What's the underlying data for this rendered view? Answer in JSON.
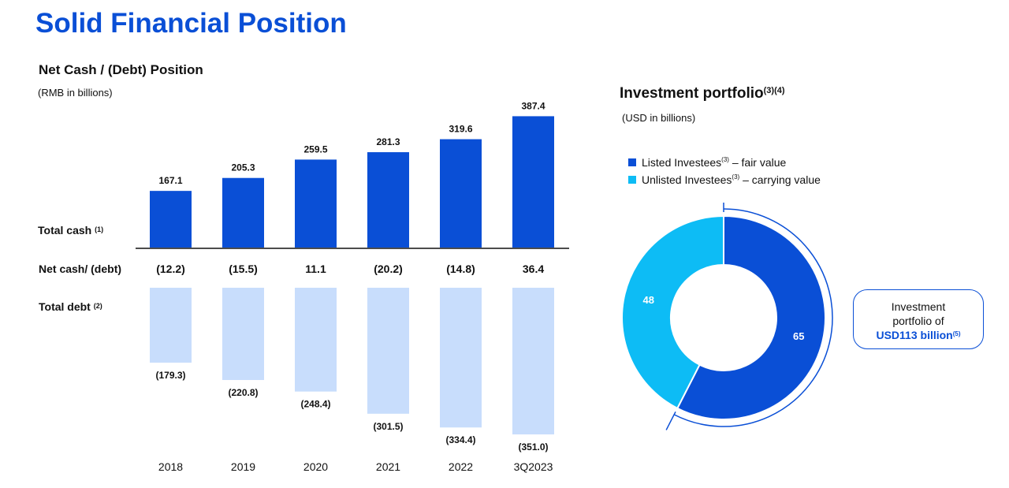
{
  "header": {
    "title": "Solid Financial Position"
  },
  "colors": {
    "brand_blue": "#0a4fd6",
    "cash_bar": "#0a4fd6",
    "debt_bar": "#c8ddfc",
    "listed": "#0a4fd6",
    "unlisted": "#0dbcf5"
  },
  "chart_data": [
    {
      "type": "bar",
      "title": "Net Cash / (Debt) Position",
      "subtitle": "(RMB in billions)",
      "categories": [
        "2018",
        "2019",
        "2020",
        "2021",
        "2022",
        "3Q2023"
      ],
      "series": [
        {
          "name": "Total cash",
          "note": "(1)",
          "values": [
            167.1,
            205.3,
            259.5,
            281.3,
            319.6,
            387.4
          ],
          "labels": [
            "167.1",
            "205.3",
            "259.5",
            "281.3",
            "319.6",
            "387.4"
          ]
        },
        {
          "name": "Net cash/ (debt)",
          "values": [
            -12.2,
            -15.5,
            11.1,
            -20.2,
            -14.8,
            36.4
          ],
          "labels": [
            "(12.2)",
            "(15.5)",
            "11.1",
            "(20.2)",
            "(14.8)",
            "36.4"
          ]
        },
        {
          "name": "Total debt",
          "note": "(2)",
          "values": [
            -179.3,
            -220.8,
            -248.4,
            -301.5,
            -334.4,
            -351.0
          ],
          "labels": [
            "(179.3)",
            "(220.8)",
            "(248.4)",
            "(301.5)",
            "(334.4)",
            "(351.0)"
          ]
        }
      ],
      "legend": "none",
      "grid": false
    },
    {
      "type": "pie",
      "title": "Investment portfolio",
      "title_note": "(3)(4)",
      "subtitle": "(USD in billions)",
      "donut": true,
      "slices": [
        {
          "name": "Listed Investees",
          "note": "(3)",
          "suffix": "– fair value",
          "value": 65,
          "label": "65"
        },
        {
          "name": "Unlisted Investees",
          "note": "(3)",
          "suffix": "– carrying value",
          "value": 48,
          "label": "48"
        }
      ],
      "legend": "top",
      "callout": {
        "line1": "Investment",
        "line2": "portfolio of",
        "highlight": "USD113 billion",
        "note": "(5)"
      }
    }
  ]
}
